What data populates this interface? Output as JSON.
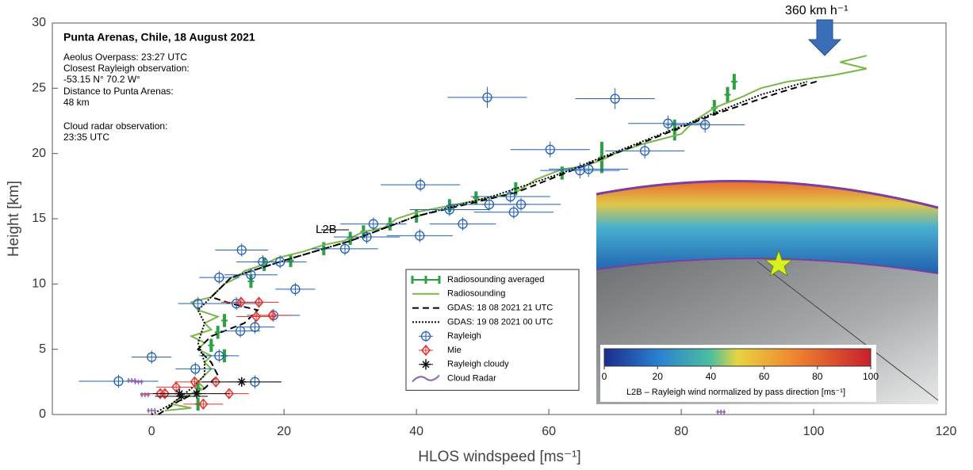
{
  "chart_data": {
    "type": "scatter",
    "xlabel": "HLOS windspeed [ms⁻¹]",
    "ylabel": "Height [km]",
    "xlim": [
      -15,
      120
    ],
    "ylim": [
      0,
      30
    ],
    "xticks": [
      0,
      20,
      40,
      60,
      80,
      100,
      120
    ],
    "yticks": [
      0,
      5,
      10,
      15,
      20,
      25,
      30
    ],
    "legend": "lower center",
    "annotations": [
      "Punta Arenas, Chile, 18 August 2021",
      "Aeolus Overpass: 23:27 UTC",
      "Closest Rayleigh observation:",
      "-53.15 N° 70.2 W°",
      "Distance to Punta Arenas:",
      "48 km",
      "Cloud radar observation:",
      "23:35 UTC",
      "L2B",
      "360 km h⁻¹"
    ],
    "colorbar": {
      "label": "L2B – Rayleigh wind normalized by pass direction [ms⁻¹]",
      "lim": [
        0,
        100
      ],
      "ticks": [
        0,
        20,
        40,
        60,
        80,
        100
      ]
    },
    "series": [
      {
        "name": "Radiosounding averaged",
        "marker": "vbar",
        "color": "#2ea043",
        "x": [
          7,
          7,
          11,
          9,
          10,
          11,
          15,
          17,
          21,
          26,
          30,
          32,
          36,
          40,
          45,
          49,
          55,
          62,
          68,
          79,
          85,
          87,
          88
        ],
        "y": [
          0.8,
          2.0,
          4.5,
          5.3,
          6.3,
          7.2,
          10.2,
          11.5,
          11.8,
          12.7,
          13.5,
          14.0,
          14.6,
          15.2,
          16.0,
          16.6,
          17.3,
          18.5,
          19.7,
          21.8,
          23.5,
          24.5,
          25.5
        ],
        "yerr": [
          0.5,
          0.5,
          0.5,
          0.5,
          0.5,
          0.5,
          0.5,
          0.5,
          0.5,
          0.5,
          0.5,
          0.5,
          0.5,
          0.5,
          0.5,
          0.5,
          0.5,
          0.5,
          1.2,
          0.8,
          0.6,
          0.6,
          0.6
        ]
      },
      {
        "name": "Radiosounding",
        "marker": "line",
        "color": "#7ab648",
        "x": [
          2,
          6,
          3,
          4,
          6,
          8,
          7,
          8,
          9,
          8,
          9,
          7,
          8,
          6,
          9,
          8,
          10,
          7,
          6,
          9,
          10,
          11,
          13,
          14,
          17,
          19,
          23,
          26,
          29,
          32,
          35,
          37,
          40,
          45,
          50,
          55,
          58,
          62,
          65,
          68,
          70,
          74,
          80,
          82,
          85,
          89,
          92,
          96,
          103,
          108,
          104,
          108
        ],
        "y": [
          0.3,
          0.5,
          0.8,
          1.2,
          1.6,
          2.0,
          2.5,
          3.0,
          3.5,
          4.0,
          4.5,
          5.0,
          5.5,
          6.0,
          6.5,
          7.0,
          7.5,
          8.0,
          8.6,
          9.0,
          9.5,
          10.0,
          10.5,
          11,
          11.5,
          12,
          12.5,
          13,
          13.3,
          14,
          14.3,
          15,
          15.5,
          16,
          16.5,
          17,
          18,
          18.8,
          19,
          19.5,
          20,
          20.7,
          21.5,
          22.5,
          23.5,
          24.3,
          25,
          25.5,
          26,
          26.5,
          27,
          27.5
        ]
      },
      {
        "name": "GDAS: 18 08 2021 21 UTC",
        "marker": "dashed",
        "color": "#000000",
        "x": [
          1,
          4,
          8,
          10,
          9,
          7,
          9,
          14,
          16,
          12,
          9,
          12,
          20,
          30,
          40,
          55,
          65,
          75,
          85,
          95,
          101
        ],
        "y": [
          0,
          1,
          2,
          3,
          4,
          5,
          6,
          7,
          8,
          8.5,
          9,
          10.5,
          11.8,
          13.3,
          15.2,
          17,
          19,
          21,
          23,
          24.7,
          25.6
        ]
      },
      {
        "name": "GDAS: 19 08 2021 00 UTC",
        "marker": "dotted",
        "color": "#000000",
        "x": [
          0,
          3,
          6,
          8,
          8,
          7,
          8,
          7,
          9,
          12,
          20,
          30,
          40,
          52,
          62,
          72,
          82,
          92,
          99
        ],
        "y": [
          0,
          0.8,
          2,
          3,
          4,
          5.5,
          7,
          8,
          9,
          10.5,
          11.8,
          13.3,
          15.2,
          16.8,
          18.5,
          20.5,
          22.5,
          24.5,
          25.5
        ]
      },
      {
        "name": "Rayleigh",
        "marker": "circle",
        "color": "#1f5fb4",
        "x": [
          -5,
          0,
          6.6,
          7,
          10.2,
          10.2,
          13.4,
          15.6,
          13.6,
          16.8,
          15,
          19.4,
          21.7,
          12.8,
          18.4,
          15.6,
          29.2,
          33.5,
          32.5,
          40.5,
          47,
          45,
          40.6,
          51,
          54.7,
          54.2,
          55.8,
          60.2,
          64.7,
          66,
          74.5,
          78,
          83.6,
          50.7,
          70
        ],
        "y": [
          2.55,
          4.4,
          3.5,
          8.5,
          4.5,
          10.5,
          6.4,
          6.7,
          12.6,
          11.7,
          10.7,
          11.7,
          9.6,
          8.5,
          7.6,
          2.5,
          12.7,
          14.6,
          13.6,
          13.7,
          14.6,
          15.7,
          17.6,
          16.1,
          15.5,
          16.7,
          16.1,
          20.3,
          18.7,
          18.8,
          20.2,
          22.3,
          22.2,
          24.3,
          24.2
        ],
        "xerr": [
          6,
          3,
          3,
          3,
          3,
          3,
          3,
          3,
          4,
          4,
          4,
          4,
          3,
          4,
          4,
          4,
          5,
          5,
          5,
          5,
          5,
          6,
          6,
          6,
          6,
          6,
          6,
          6,
          6,
          6,
          6,
          6,
          6,
          6,
          6
        ],
        "yerr": [
          0.5,
          0.5,
          0.5,
          0.5,
          0.5,
          0.5,
          0.5,
          0.5,
          0.5,
          0.5,
          0.5,
          0.5,
          0.5,
          0.5,
          0.5,
          0.5,
          0.5,
          0.5,
          0.5,
          0.5,
          0.5,
          0.5,
          0.5,
          0.5,
          0.5,
          0.5,
          0.5,
          0.6,
          0.6,
          0.6,
          0.6,
          0.6,
          0.6,
          0.8,
          0.8
        ]
      },
      {
        "name": "Mie",
        "marker": "diamond",
        "color": "#e8302a",
        "x": [
          1.3,
          2,
          3.7,
          6.5,
          9.7,
          11.7,
          7.8,
          13.5,
          16.2,
          15.8,
          18.2
        ],
        "y": [
          1.6,
          1.6,
          2.1,
          2.5,
          2.5,
          1.6,
          0.8,
          8.6,
          8.6,
          7.5,
          7.6
        ],
        "xerr": [
          3,
          3,
          3,
          3,
          3,
          3,
          3,
          3,
          3,
          3,
          3
        ],
        "yerr": [
          0.3,
          0.3,
          0.3,
          0.3,
          0.3,
          0.3,
          0.3,
          0.3,
          0.3,
          0.3,
          0.3
        ]
      },
      {
        "name": "Rayleigh cloudy",
        "marker": "star",
        "color": "#111111",
        "x": [
          4.2,
          6.8,
          13.6,
          4.5
        ],
        "y": [
          1.6,
          1.6,
          2.5,
          1.4
        ],
        "xerr": [
          4,
          5,
          6,
          4
        ],
        "yerr": [
          0.3,
          0.3,
          0.3,
          0.3
        ]
      },
      {
        "name": "Cloud Radar",
        "marker": "tick",
        "color": "#8e63b0",
        "x": [
          0,
          -1,
          -2,
          -3,
          86
        ],
        "y": [
          0.3,
          1.5,
          2.5,
          2.6,
          0.2
        ]
      }
    ]
  }
}
